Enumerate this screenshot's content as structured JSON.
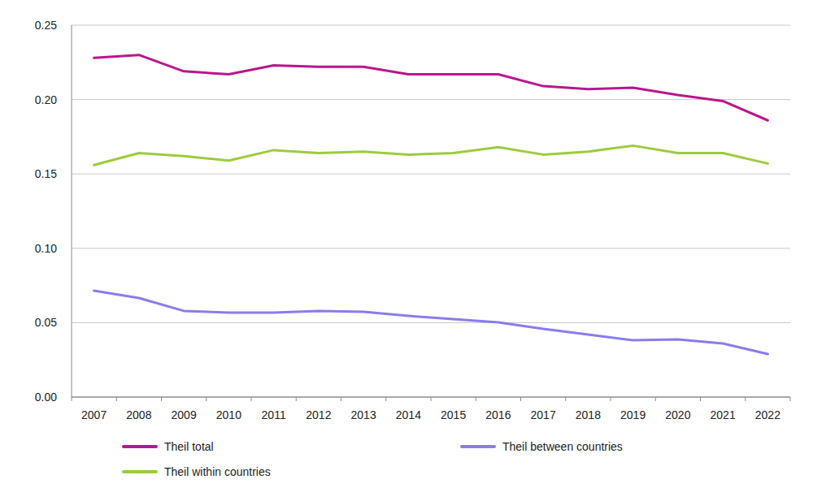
{
  "chart_data": {
    "type": "line",
    "categories": [
      "2007",
      "2008",
      "2009",
      "2010",
      "2011",
      "2012",
      "2013",
      "2014",
      "2015",
      "2016",
      "2017",
      "2018",
      "2019",
      "2020",
      "2021",
      "2022"
    ],
    "series": [
      {
        "name": "Theil total",
        "color": "#b8178c",
        "values": [
          0.228,
          0.23,
          0.219,
          0.217,
          0.223,
          0.222,
          0.222,
          0.217,
          0.217,
          0.217,
          0.209,
          0.207,
          0.208,
          0.203,
          0.199,
          0.186
        ]
      },
      {
        "name": "Theil within countries",
        "color": "#9dcb3e",
        "values": [
          0.156,
          0.164,
          0.162,
          0.159,
          0.166,
          0.164,
          0.165,
          0.163,
          0.164,
          0.168,
          0.163,
          0.165,
          0.169,
          0.164,
          0.164,
          0.157
        ]
      },
      {
        "name": "Theil between countries",
        "color": "#8a7cea",
        "values": [
          0.0715,
          0.0666,
          0.0579,
          0.0568,
          0.0568,
          0.0579,
          0.0573,
          0.0546,
          0.0524,
          0.0502,
          0.0459,
          0.042,
          0.0382,
          0.0388,
          0.036,
          0.0289
        ]
      }
    ],
    "ylim": [
      0,
      0.25
    ],
    "yticks": [
      {
        "value": 0,
        "label": "0.00"
      },
      {
        "value": 0.05,
        "label": "0.05"
      },
      {
        "value": 0.1,
        "label": "0.10"
      },
      {
        "value": 0.15,
        "label": "0.15"
      },
      {
        "value": 0.2,
        "label": "0.20"
      },
      {
        "value": 0.25,
        "label": "0.25"
      }
    ],
    "grid": true,
    "legend": "bottom"
  }
}
